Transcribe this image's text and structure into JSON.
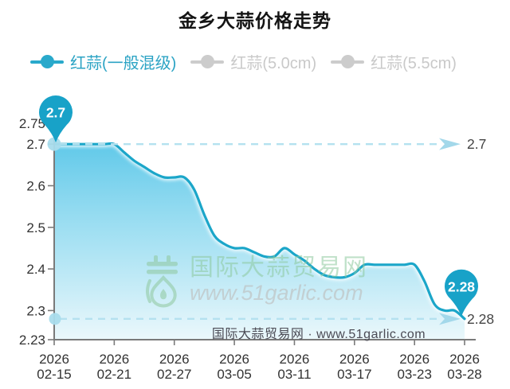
{
  "title": "金乡大蒜价格走势",
  "legend": {
    "items": [
      {
        "label": "红蒜(一般混级)",
        "color": "#29a9cb",
        "text_color": "#2ba3c4",
        "active": true
      },
      {
        "label": "红蒜(5.0cm)",
        "color": "#cccccc",
        "text_color": "#c9c9c9",
        "active": false
      },
      {
        "label": "红蒜(5.5cm)",
        "color": "#cccccc",
        "text_color": "#c9c9c9",
        "active": false
      }
    ]
  },
  "watermark": {
    "brand": "国际大蒜贸易网",
    "url": "www.51garlic.com",
    "logo": "garlic-logo"
  },
  "footer_credit": "国际大蒜贸易网 · www.51garlic.com",
  "colors": {
    "line": "#1ba6c9",
    "balloon": "#18a2c8",
    "area_top": "#58c6e8",
    "area_mid": "#90daf0",
    "area_bottom": "#e9f7fb",
    "dash": "#b4e1ef",
    "arrow": "#a3d8ea",
    "dot": "#a9dcec",
    "axis": "#7a7a7a",
    "tick_label": "#333333",
    "ref_label": "#444444"
  },
  "chart_data": {
    "type": "line",
    "title": "金乡大蒜价格走势",
    "x_year": "2026",
    "x": [
      "02-15",
      "02-16",
      "02-17",
      "02-18",
      "02-19",
      "02-20",
      "02-21",
      "02-22",
      "02-23",
      "02-24",
      "02-25",
      "02-26",
      "02-27",
      "02-28",
      "03-01",
      "03-02",
      "03-03",
      "03-04",
      "03-05",
      "03-06",
      "03-07",
      "03-08",
      "03-09",
      "03-10",
      "03-11",
      "03-12",
      "03-13",
      "03-14",
      "03-15",
      "03-16",
      "03-17",
      "03-18",
      "03-19",
      "03-20",
      "03-21",
      "03-22",
      "03-23",
      "03-24",
      "03-25",
      "03-26",
      "03-27",
      "03-28"
    ],
    "series": [
      {
        "name": "红蒜(一般混级)",
        "visible": true,
        "values": [
          2.7,
          2.7,
          2.7,
          2.7,
          2.7,
          2.7,
          2.7,
          2.68,
          2.66,
          2.645,
          2.63,
          2.62,
          2.62,
          2.62,
          2.59,
          2.53,
          2.48,
          2.46,
          2.45,
          2.45,
          2.44,
          2.43,
          2.43,
          2.45,
          2.435,
          2.42,
          2.4,
          2.385,
          2.38,
          2.38,
          2.39,
          2.41,
          2.41,
          2.41,
          2.41,
          2.41,
          2.41,
          2.37,
          2.315,
          2.3,
          2.3,
          2.28
        ]
      },
      {
        "name": "红蒜(5.0cm)",
        "visible": false,
        "values": []
      },
      {
        "name": "红蒜(5.5cm)",
        "visible": false,
        "values": []
      }
    ],
    "x_ticks": [
      "02-15",
      "02-21",
      "02-27",
      "03-05",
      "03-11",
      "03-17",
      "03-23",
      "03-28"
    ],
    "y_ticks": [
      2.23,
      2.3,
      2.4,
      2.5,
      2.6,
      2.7,
      2.75
    ],
    "ylim": [
      2.23,
      2.75
    ],
    "grid": false,
    "legend_position": "top",
    "reference_lines": [
      {
        "value": 2.7,
        "label": "2.7"
      },
      {
        "value": 2.28,
        "label": "2.28"
      }
    ],
    "annotations": [
      {
        "type": "balloon",
        "at": "first",
        "label": "2.7"
      },
      {
        "type": "balloon",
        "at": "last",
        "label": "2.28"
      }
    ]
  }
}
